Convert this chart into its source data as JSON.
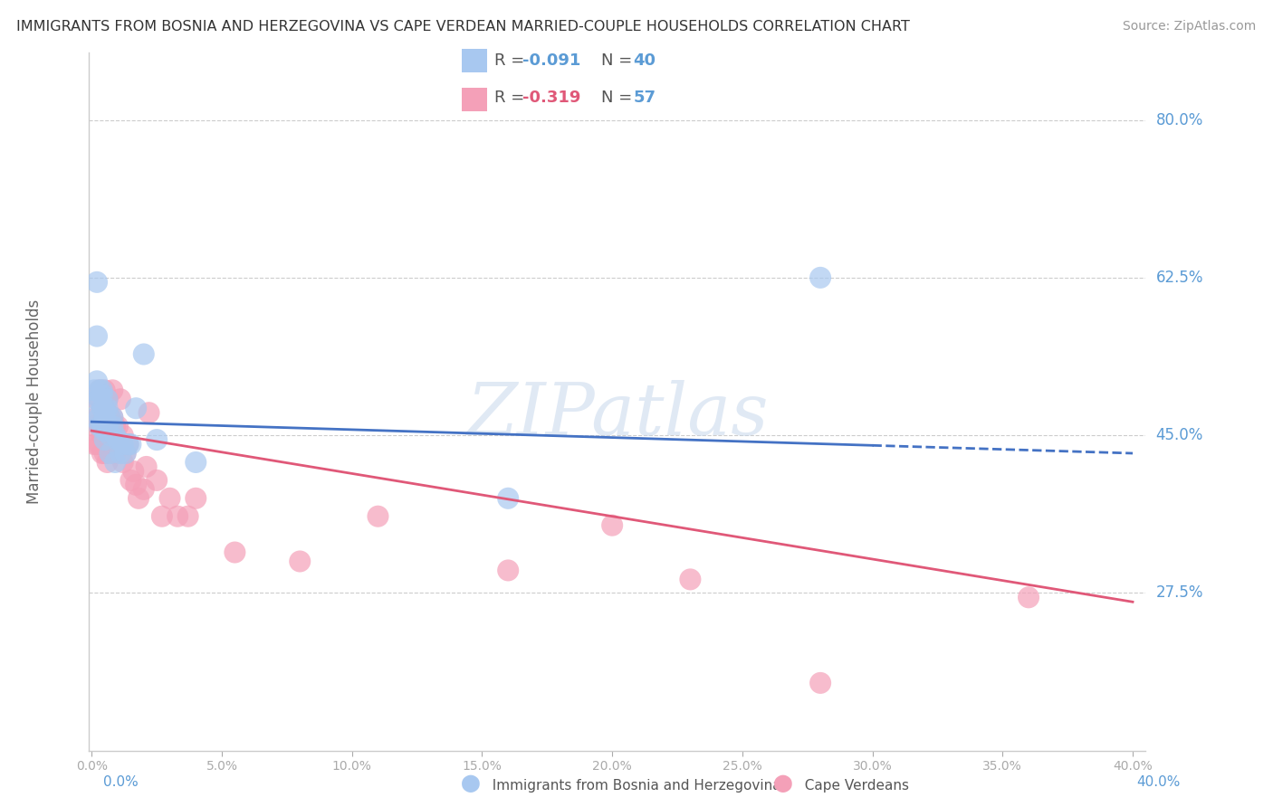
{
  "title": "IMMIGRANTS FROM BOSNIA AND HERZEGOVINA VS CAPE VERDEAN MARRIED-COUPLE HOUSEHOLDS CORRELATION CHART",
  "source": "Source: ZipAtlas.com",
  "ylabel": "Married-couple Households",
  "y_ticks": [
    0.275,
    0.45,
    0.625,
    0.8
  ],
  "y_tick_labels": [
    "27.5%",
    "45.0%",
    "62.5%",
    "80.0%"
  ],
  "y_min": 0.1,
  "y_max": 0.875,
  "x_min": -0.001,
  "x_max": 0.405,
  "color_blue": "#a8c8f0",
  "color_pink": "#f4a0b8",
  "color_line_blue": "#4472c4",
  "color_line_pink": "#e05878",
  "color_axis_labels": "#5b9bd5",
  "watermark": "ZIPatlas",
  "blue_line_x0": 0.0,
  "blue_line_y0": 0.465,
  "blue_line_x1": 0.4,
  "blue_line_y1": 0.43,
  "pink_line_x0": 0.0,
  "pink_line_y0": 0.455,
  "pink_line_x1": 0.4,
  "pink_line_y1": 0.265,
  "blue_scatter_x": [
    0.001,
    0.001,
    0.002,
    0.002,
    0.002,
    0.002,
    0.003,
    0.003,
    0.003,
    0.003,
    0.004,
    0.004,
    0.004,
    0.004,
    0.005,
    0.005,
    0.005,
    0.005,
    0.006,
    0.006,
    0.006,
    0.007,
    0.007,
    0.007,
    0.008,
    0.008,
    0.009,
    0.009,
    0.01,
    0.011,
    0.012,
    0.013,
    0.014,
    0.015,
    0.017,
    0.02,
    0.025,
    0.04,
    0.16,
    0.28
  ],
  "blue_scatter_y": [
    0.5,
    0.47,
    0.62,
    0.56,
    0.51,
    0.49,
    0.5,
    0.49,
    0.47,
    0.46,
    0.5,
    0.495,
    0.48,
    0.46,
    0.48,
    0.47,
    0.455,
    0.445,
    0.49,
    0.48,
    0.46,
    0.47,
    0.45,
    0.43,
    0.47,
    0.46,
    0.45,
    0.42,
    0.445,
    0.43,
    0.44,
    0.43,
    0.44,
    0.44,
    0.48,
    0.54,
    0.445,
    0.42,
    0.38,
    0.625
  ],
  "pink_scatter_x": [
    0.001,
    0.001,
    0.002,
    0.002,
    0.002,
    0.003,
    0.003,
    0.003,
    0.003,
    0.004,
    0.004,
    0.004,
    0.004,
    0.005,
    0.005,
    0.005,
    0.005,
    0.006,
    0.006,
    0.006,
    0.006,
    0.007,
    0.007,
    0.007,
    0.008,
    0.008,
    0.008,
    0.009,
    0.009,
    0.01,
    0.01,
    0.011,
    0.012,
    0.012,
    0.013,
    0.014,
    0.015,
    0.016,
    0.017,
    0.018,
    0.02,
    0.021,
    0.022,
    0.025,
    0.027,
    0.03,
    0.033,
    0.037,
    0.04,
    0.055,
    0.08,
    0.11,
    0.16,
    0.2,
    0.23,
    0.28,
    0.36
  ],
  "pink_scatter_y": [
    0.46,
    0.44,
    0.49,
    0.47,
    0.44,
    0.5,
    0.49,
    0.46,
    0.44,
    0.48,
    0.46,
    0.45,
    0.43,
    0.5,
    0.48,
    0.46,
    0.43,
    0.49,
    0.475,
    0.455,
    0.42,
    0.47,
    0.455,
    0.43,
    0.5,
    0.47,
    0.44,
    0.46,
    0.43,
    0.46,
    0.44,
    0.49,
    0.45,
    0.42,
    0.43,
    0.44,
    0.4,
    0.41,
    0.395,
    0.38,
    0.39,
    0.415,
    0.475,
    0.4,
    0.36,
    0.38,
    0.36,
    0.36,
    0.38,
    0.32,
    0.31,
    0.36,
    0.3,
    0.35,
    0.29,
    0.175,
    0.27
  ]
}
